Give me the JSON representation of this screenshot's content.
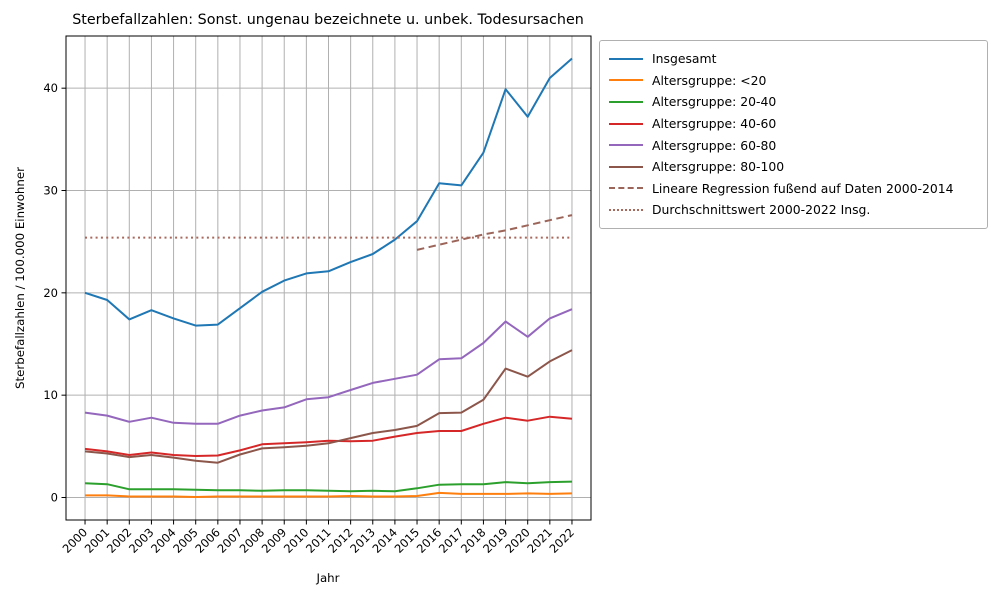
{
  "figure": {
    "title": "Sterbefallzahlen: Sonst. ungenau bezeichnete u. unbek. Todesursachen",
    "xlabel": "Jahr",
    "ylabel": "Sterbefallzahlen / 100.000 Einwohner",
    "background_color": "#ffffff",
    "grid_color": "#b0b0b0",
    "spine_color": "#000000"
  },
  "chart_data": {
    "type": "line",
    "title": "Sterbefallzahlen: Sonst. ungenau bezeichnete u. unbek. Todesursachen",
    "xlabel": "Jahr",
    "ylabel": "Sterbefallzahlen / 100.000 Einwohner",
    "grid": true,
    "legend_position": "upper right",
    "xlim": [
      1999.14,
      2022.86
    ],
    "ylim": [
      -2.2,
      45.1
    ],
    "yticks": [
      0,
      10,
      20,
      30,
      40
    ],
    "x": [
      2000,
      2001,
      2002,
      2003,
      2004,
      2005,
      2006,
      2007,
      2008,
      2009,
      2010,
      2011,
      2012,
      2013,
      2014,
      2015,
      2016,
      2017,
      2018,
      2019,
      2020,
      2021,
      2022
    ],
    "xticklabels": [
      "2000",
      "2001",
      "2002",
      "2003",
      "2004",
      "2005",
      "2006",
      "2007",
      "2008",
      "2009",
      "2010",
      "2011",
      "2012",
      "2013",
      "2014",
      "2015",
      "2016",
      "2017",
      "2018",
      "2019",
      "2020",
      "2021",
      "2022"
    ],
    "series": [
      {
        "name": "Insgesamt",
        "color": "#1f77b4",
        "style": "solid",
        "values": [
          20.0,
          19.3,
          17.4,
          18.3,
          17.5,
          16.8,
          16.9,
          18.5,
          20.1,
          21.2,
          21.9,
          22.1,
          23.0,
          23.8,
          25.2,
          27.0,
          30.7,
          30.5,
          33.7,
          39.9,
          37.2,
          41.0,
          42.9
        ]
      },
      {
        "name": "Altersgruppe: <20",
        "color": "#ff7f0e",
        "style": "solid",
        "values": [
          0.2,
          0.2,
          0.1,
          0.1,
          0.1,
          0.05,
          0.1,
          0.1,
          0.1,
          0.1,
          0.1,
          0.1,
          0.15,
          0.1,
          0.1,
          0.15,
          0.45,
          0.35,
          0.35,
          0.35,
          0.4,
          0.35,
          0.4
        ]
      },
      {
        "name": "Altersgruppe: 20-40",
        "color": "#2ca02c",
        "style": "solid",
        "values": [
          1.4,
          1.3,
          0.8,
          0.8,
          0.8,
          0.75,
          0.7,
          0.7,
          0.65,
          0.7,
          0.7,
          0.65,
          0.6,
          0.65,
          0.6,
          0.9,
          1.25,
          1.3,
          1.3,
          1.5,
          1.4,
          1.5,
          1.55
        ]
      },
      {
        "name": "Altersgruppe: 40-60",
        "color": "#d62728",
        "style": "solid",
        "values": [
          4.75,
          4.5,
          4.15,
          4.4,
          4.15,
          4.05,
          4.1,
          4.6,
          5.2,
          5.3,
          5.4,
          5.55,
          5.5,
          5.55,
          5.95,
          6.3,
          6.5,
          6.5,
          7.2,
          7.8,
          7.5,
          7.9,
          7.7
        ]
      },
      {
        "name": "Altersgruppe: 60-80",
        "color": "#9467bd",
        "style": "solid",
        "values": [
          8.3,
          8.0,
          7.4,
          7.8,
          7.3,
          7.2,
          7.2,
          8.0,
          8.5,
          8.8,
          9.6,
          9.8,
          10.5,
          11.2,
          11.6,
          12.0,
          13.5,
          13.6,
          15.1,
          17.2,
          15.7,
          17.5,
          18.4
        ]
      },
      {
        "name": "Altersgruppe: 80-100",
        "color": "#8c564b",
        "style": "solid",
        "values": [
          4.5,
          4.3,
          3.95,
          4.15,
          3.9,
          3.6,
          3.4,
          4.2,
          4.8,
          4.9,
          5.05,
          5.3,
          5.8,
          6.3,
          6.6,
          7.0,
          8.25,
          8.3,
          9.55,
          12.6,
          11.8,
          13.3,
          14.4
        ]
      },
      {
        "name": "Lineare Regression fußend auf Daten 2000-2014",
        "color": "#9c655a",
        "style": "dashed",
        "x": [
          2015,
          2016,
          2017,
          2018,
          2019,
          2020,
          2021,
          2022
        ],
        "values": [
          24.2,
          24.7,
          25.2,
          25.7,
          26.1,
          26.6,
          27.1,
          27.6
        ]
      },
      {
        "name": "Durchschnittswert 2000-2022 Insg.",
        "color": "#a8685c",
        "style": "dotted",
        "x": [
          2000,
          2022
        ],
        "values": [
          25.4,
          25.4
        ]
      }
    ]
  }
}
